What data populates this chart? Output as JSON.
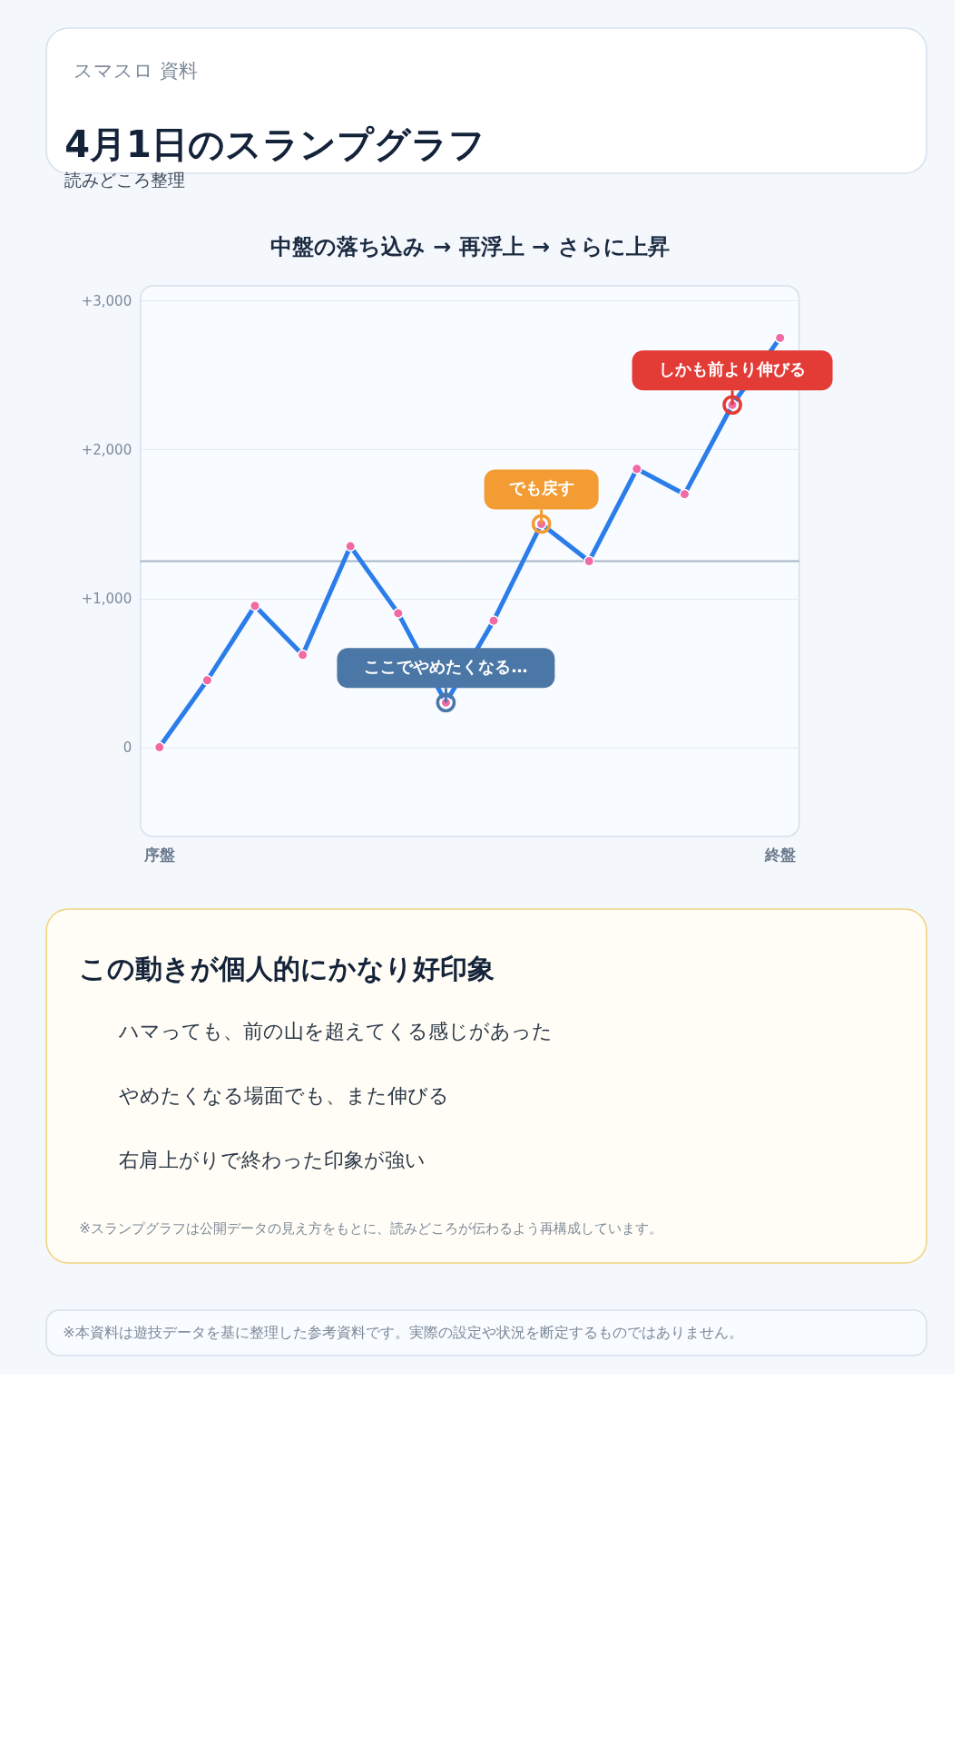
{
  "chart_data": {
    "type": "line",
    "title": "中盤の落ち込み → 再浮上 → さらに上昇",
    "categories": [
      "序盤",
      null,
      null,
      null,
      null,
      null,
      null,
      null,
      null,
      null,
      null,
      null,
      null,
      "終盤"
    ],
    "series": [
      {
        "color": "#2b7de9",
        "values": [
          0,
          450,
          950,
          620,
          1350,
          900,
          300,
          850,
          1500,
          1250,
          1870,
          1700,
          2300,
          2750
        ]
      }
    ],
    "ylim": [
      -600,
      3100
    ],
    "yticks": [
      0,
      {
        "value": 1000,
        "label": "+1,000"
      },
      {
        "value": 2000,
        "label": "+2,000"
      },
      {
        "value": 3000,
        "label": "+3,000"
      }
    ],
    "grid": "y",
    "marker": "circle",
    "line_style": "solid",
    "legend": false,
    "ref_lines": [
      {
        "axis": "y",
        "value": 1250,
        "label": null,
        "color": "#a7b6c8"
      }
    ],
    "annotations": [
      "スマスロ 資料",
      "4月1日のスランプグラフ",
      "読みどころ整理",
      "この動きが個人的にかなり好印象",
      "ハマっても、前の山を超えてくる感じがあった",
      "やめたくなる場面でも、また伸びる",
      "右肩上がりで終わった印象が強い",
      "※スランプグラフは公開データの見え方をもとに、読みどころが伝わるよう再構成しています。",
      "※本資料は遊技データを基に整理した参考資料です。実際の設定や状況を断定するものではありません。",
      {
        "text": "ここでやめたくなる…",
        "y": 300
      },
      {
        "text": "でも戻す",
        "y": 1500
      },
      {
        "text": "しかも前より伸びる",
        "y": 2300
      }
    ]
  }
}
